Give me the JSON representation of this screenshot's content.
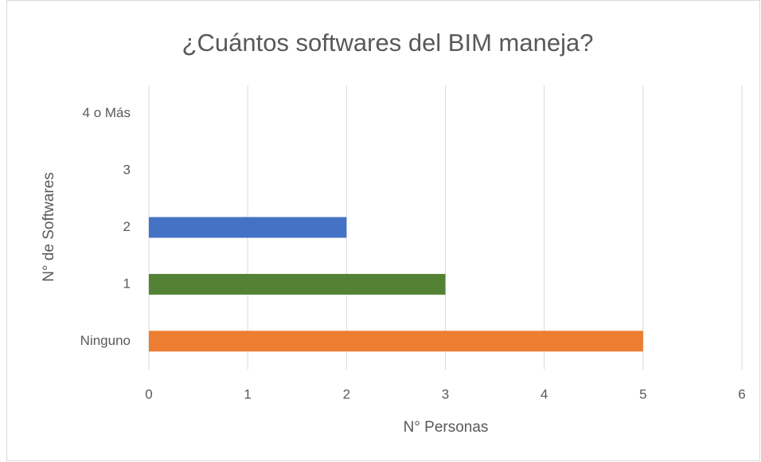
{
  "chart_data": {
    "type": "hbar",
    "title": "¿Cuántos softwares del BIM maneja?",
    "x_label": "N° Personas",
    "y_label": "N° de Softwares",
    "categories": [
      "Ninguno",
      "1",
      "2",
      "3",
      "4 o Más"
    ],
    "values": [
      5,
      3,
      2,
      0,
      0
    ],
    "colors": [
      "#ed7d31",
      "#548235",
      "#4472c4",
      null,
      null
    ],
    "xlim": [
      0,
      6
    ],
    "xticks": [
      0,
      1,
      2,
      3,
      4,
      5,
      6
    ],
    "grid": true
  }
}
